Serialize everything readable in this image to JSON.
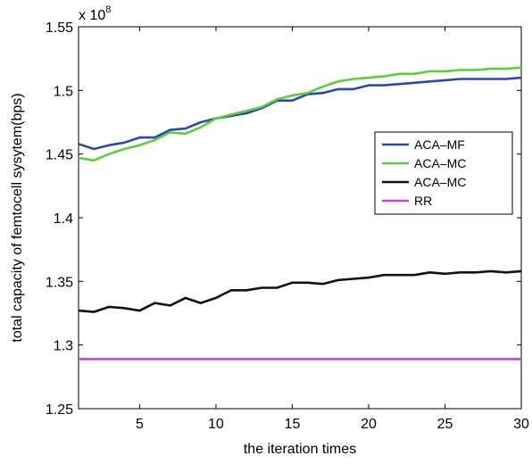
{
  "chart_data": {
    "type": "line",
    "xlabel": "the iteration times",
    "ylabel": "total capacity of femtocell sysytem(bps)",
    "y_scale_base": "x 10",
    "y_scale_exponent": "8",
    "xlim": [
      1,
      30
    ],
    "ylim": [
      1.25,
      1.55
    ],
    "x_ticks": [
      5,
      10,
      15,
      20,
      25,
      30
    ],
    "y_ticks": [
      1.25,
      1.3,
      1.35,
      1.4,
      1.45,
      1.5,
      1.55
    ],
    "y_tick_labels": [
      "1.25",
      "1.3",
      "1.35",
      "1.4",
      "1.45",
      "1.5",
      "1.55"
    ],
    "grid": false,
    "legend_position": "right",
    "x": [
      1,
      2,
      3,
      4,
      5,
      6,
      7,
      8,
      9,
      10,
      11,
      12,
      13,
      14,
      15,
      16,
      17,
      18,
      19,
      20,
      21,
      22,
      23,
      24,
      25,
      26,
      27,
      28,
      29,
      30
    ],
    "series": [
      {
        "name": "ACA–MF",
        "color": "#2b4aa8",
        "values": [
          1.458,
          1.454,
          1.457,
          1.459,
          1.463,
          1.463,
          1.469,
          1.47,
          1.475,
          1.478,
          1.48,
          1.482,
          1.486,
          1.492,
          1.492,
          1.497,
          1.498,
          1.501,
          1.501,
          1.504,
          1.504,
          1.505,
          1.506,
          1.507,
          1.508,
          1.509,
          1.509,
          1.509,
          1.509,
          1.51
        ]
      },
      {
        "name": "ACA–MC",
        "color": "#5fcc3f",
        "values": [
          1.447,
          1.445,
          1.45,
          1.454,
          1.457,
          1.461,
          1.467,
          1.466,
          1.471,
          1.478,
          1.481,
          1.484,
          1.487,
          1.493,
          1.496,
          1.498,
          1.503,
          1.507,
          1.509,
          1.51,
          1.511,
          1.513,
          1.513,
          1.515,
          1.515,
          1.516,
          1.516,
          1.517,
          1.517,
          1.518
        ]
      },
      {
        "name": "ACA–MC",
        "color": "#111111",
        "values": [
          1.327,
          1.326,
          1.33,
          1.329,
          1.327,
          1.333,
          1.331,
          1.337,
          1.333,
          1.337,
          1.343,
          1.343,
          1.345,
          1.345,
          1.349,
          1.349,
          1.348,
          1.351,
          1.352,
          1.353,
          1.355,
          1.355,
          1.355,
          1.357,
          1.356,
          1.357,
          1.357,
          1.358,
          1.357,
          1.358
        ]
      },
      {
        "name": "RR",
        "color": "#c04cc4",
        "values": [
          1.289,
          1.289,
          1.289,
          1.289,
          1.289,
          1.289,
          1.289,
          1.289,
          1.289,
          1.289,
          1.289,
          1.289,
          1.289,
          1.289,
          1.289,
          1.289,
          1.289,
          1.289,
          1.289,
          1.289,
          1.289,
          1.289,
          1.289,
          1.289,
          1.289,
          1.289,
          1.289,
          1.289,
          1.289,
          1.289
        ]
      }
    ]
  }
}
